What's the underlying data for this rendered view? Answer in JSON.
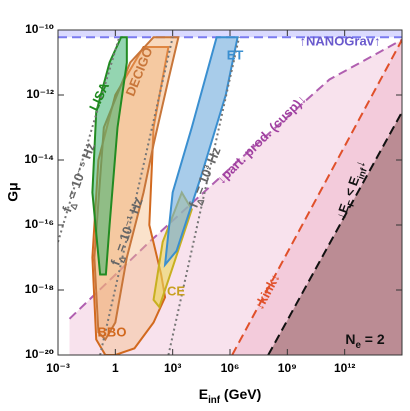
{
  "chart_data": {
    "type": "region",
    "xscale": "log",
    "yscale": "log",
    "ylabel": "Gμ",
    "xlabel": [
      "E",
      "inf",
      " (GeV)"
    ],
    "xlim": [
      0.001,
      1000000000000000.0
    ],
    "ylim": [
      1e-20,
      1e-10
    ],
    "xticks": [
      {
        "value": 0.001,
        "label": "10⁻³"
      },
      1,
      {
        "value": 1000,
        "label": "10³"
      },
      {
        "value": 1000000,
        "label": "10⁶"
      },
      {
        "value": 1000000000,
        "label": "10⁹"
      },
      {
        "value": 1000000000000,
        "label": "10¹²"
      }
    ],
    "yticks": [
      {
        "value": 1e-20,
        "label": "10⁻²⁰"
      },
      {
        "value": 1e-18,
        "label": "10⁻¹⁸"
      },
      {
        "value": 1e-16,
        "label": "10⁻¹⁶"
      },
      {
        "value": 1e-14,
        "label": "10⁻¹⁴"
      },
      {
        "value": 1e-12,
        "label": "10⁻¹²"
      },
      {
        "value": 1e-10,
        "label": "10⁻¹⁰"
      }
    ],
    "annotation": [
      "N",
      "e",
      " = 2"
    ],
    "series": [
      {
        "name": "↓part. prod. (cusp)↓",
        "kind": "boundary",
        "fill_to": "bottom",
        "color": "#b05fb0",
        "fill": "rgba(240,190,215,0.45)",
        "dash": "dashed",
        "x": [
          0.004,
          60,
          3000000,
          160000000000,
          1000000000000000.0
        ],
        "y": [
          1.3e-19,
          3e-17,
          1e-14,
          3e-12,
          5e-11
        ]
      },
      {
        "name": "↓kink↓",
        "kind": "boundary",
        "fill_to": "bottom",
        "color": "#e0502a",
        "fill": "rgba(235,160,185,0.35)",
        "dash": "dashed",
        "x": [
          1300000,
          1000000000000000.0
        ],
        "y": [
          1e-20,
          5e-11
        ]
      },
      {
        "name": [
          "↓E",
          "F",
          " < E",
          "inf",
          "↓"
        ],
        "kind": "boundary",
        "fill_to": "bottom",
        "color": "#111111",
        "fill": "rgba(140,90,90,0.55)",
        "dash": "dashed",
        "x": [
          100000000,
          1000000000000000.0
        ],
        "y": [
          1e-20,
          3e-13
        ]
      },
      {
        "name": "↑NANOGrav↑",
        "kind": "boundary",
        "fill_to": "top",
        "color": "#7b7bf0",
        "fill": "rgba(150,150,255,0.35)",
        "dash": "dashed",
        "x": [
          0.001,
          1000000000000000.0
        ],
        "y": [
          6e-11,
          6e-11
        ]
      },
      {
        "name": "BBO",
        "kind": "region",
        "color": "#d2691e",
        "fill": "rgba(245,190,140,0.45)",
        "x": [
          0.1,
          0.063,
          0.13,
          1,
          30,
          600,
          100,
          60,
          250,
          400,
          100,
          10,
          1,
          0.3
        ],
        "y": [
          3e-20,
          1e-17,
          1e-14,
          1e-12,
          3e-11,
          3e-11,
          1e-13,
          1e-16,
          3e-18,
          6e-19,
          1e-19,
          1.6e-20,
          1e-20,
          1e-20
        ]
      },
      {
        "name": "DECIGO",
        "kind": "region",
        "color": "#c8763a",
        "fill": "rgba(240,170,110,0.45)",
        "x": [
          0.13,
          0.08,
          0.25,
          6,
          100,
          2000,
          600,
          100,
          30,
          4,
          1,
          0.3
        ],
        "y": [
          5e-20,
          1e-17,
          1e-13,
          1e-11,
          6e-11,
          6e-11,
          3e-12,
          3e-14,
          1e-15,
          1e-17,
          1e-19,
          3e-20
        ]
      },
      {
        "name": "LISA",
        "kind": "region",
        "color": "#228b22",
        "fill": "rgba(60,179,113,0.55)",
        "x": [
          0.16,
          0.063,
          0.1,
          0.5,
          2,
          4,
          4,
          1.3,
          0.5,
          0.32
        ],
        "y": [
          3e-18,
          1e-15,
          3e-13,
          1e-11,
          6e-11,
          6e-11,
          1e-11,
          1e-13,
          1e-16,
          3e-18
        ]
      },
      {
        "name": "CE",
        "kind": "region",
        "color": "#c8b020",
        "fill": "rgba(235,215,90,0.6)",
        "x": [
          100,
          300,
          3000,
          10000,
          1000,
          200
        ],
        "y": [
          5e-19,
          3e-17,
          1e-15,
          3e-16,
          5e-18,
          3e-19
        ]
      },
      {
        "name": "ET",
        "kind": "region",
        "color": "#3a8fd0",
        "fill": "rgba(110,170,220,0.6)",
        "x": [
          400,
          1000,
          10000,
          200000,
          2500000,
          600000,
          30000,
          1600
        ],
        "y": [
          6e-18,
          1e-15,
          1e-13,
          6e-11,
          6e-11,
          1e-12,
          3e-15,
          1.6e-17
        ]
      },
      {
        "name": [
          "f",
          "Δ",
          " = 10⁻⁵ Hz"
        ],
        "kind": "line",
        "color": "#777777",
        "dash": "dotted",
        "x": [
          0.001,
          1.6
        ],
        "y": [
          3e-17,
          6e-11
        ]
      },
      {
        "name": [
          "f",
          "Δ",
          " = 10⁻¹ Hz"
        ],
        "kind": "line",
        "color": "#777777",
        "dash": "dotted",
        "x": [
          0.16,
          1000
        ],
        "y": [
          1e-20,
          6e-11
        ]
      },
      {
        "name": [
          "f",
          "Δ",
          " = 10³ Hz"
        ],
        "kind": "line",
        "color": "#777777",
        "dash": "dotted",
        "x": [
          600,
          3000000
        ],
        "y": [
          1e-20,
          6e-11
        ]
      }
    ]
  }
}
